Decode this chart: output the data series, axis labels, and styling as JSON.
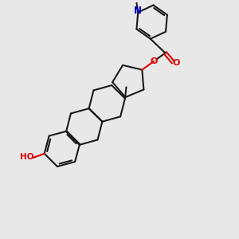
{
  "bg_color": "#e8e8e8",
  "bond_color": "#1a1a1a",
  "o_color": "#dd0000",
  "n_color": "#0000cc",
  "h_color": "#666666",
  "lw": 1.5,
  "figsize": [
    3.0,
    3.0
  ],
  "dpi": 100,
  "xlim": [
    0,
    10
  ],
  "ylim": [
    0,
    10
  ]
}
